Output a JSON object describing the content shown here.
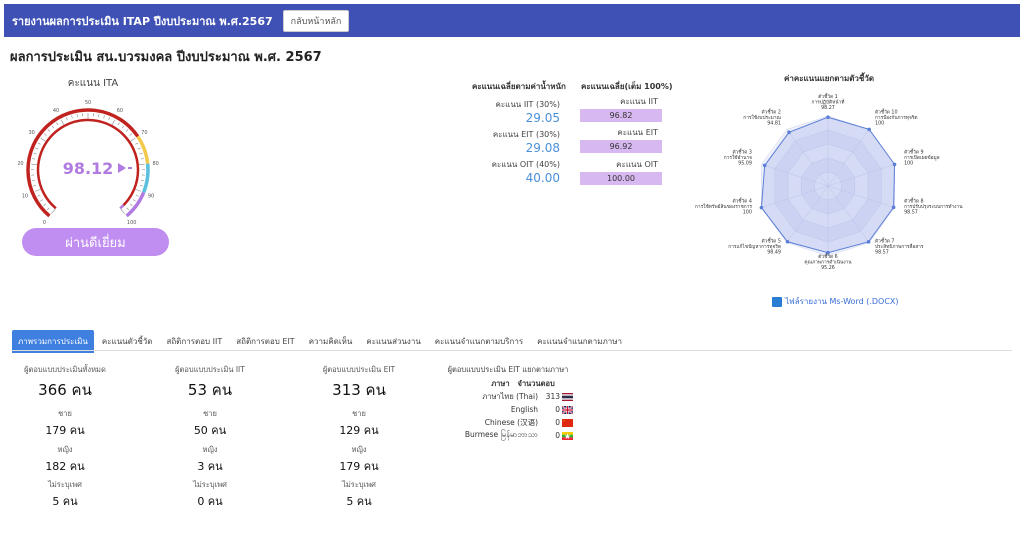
{
  "header": {
    "title": "รายงานผลการประเมิน ITAP ปีงบประมาณ พ.ศ.2567",
    "home_button": "กลับหน้าหลัก"
  },
  "page_title": "ผลการประเมิน สน.บวรมงคล ปีงบประมาณ พ.ศ. 2567",
  "gauge": {
    "label": "คะแนน ITA",
    "value": "98.12",
    "ticks": [
      "0",
      "10",
      "20",
      "30",
      "40",
      "50",
      "60",
      "70",
      "80",
      "90",
      "100"
    ],
    "result_button": "ผ่านดีเยี่ยม"
  },
  "weighted": {
    "header": "คะแนนเฉลี่ยตามค่าน้ำหนัก",
    "rows": [
      {
        "label": "คะแนน IIT (30%)",
        "value": "29.05"
      },
      {
        "label": "คะแนน EIT (30%)",
        "value": "29.08"
      },
      {
        "label": "คะแนน OIT (40%)",
        "value": "40.00"
      }
    ]
  },
  "full_score": {
    "header": "คะแนนเฉลี่ย(เต็ม 100%)",
    "rows": [
      {
        "label": "คะแนน IIT",
        "value": "96.82"
      },
      {
        "label": "คะแนน EIT",
        "value": "96.92"
      },
      {
        "label": "คะแนน OIT",
        "value": "100.00"
      }
    ]
  },
  "radar": {
    "title": "ค่าคะแนนแยกตามตัวชี้วัด",
    "indicators": [
      {
        "num": "ตัวชี้วัด 1",
        "name": "การปฏิบัติหน้าที่",
        "value": "98.27",
        "score": 98.27
      },
      {
        "num": "ตัวชี้วัด 10",
        "name": "การป้องกันการทุจริต",
        "value": "100",
        "score": 100
      },
      {
        "num": "ตัวชี้วัด 9",
        "name": "การเปิดเผยข้อมูล",
        "value": "100",
        "score": 100
      },
      {
        "num": "ตัวชี้วัด 8",
        "name": "การปรับปรุงระบบการทำงาน",
        "value": "98.57",
        "score": 98.57
      },
      {
        "num": "ตัวชี้วัด 7",
        "name": "ประสิทธิภาพการสื่อสาร",
        "value": "98.57",
        "score": 98.57
      },
      {
        "num": "ตัวชี้วัด 6",
        "name": "คุณภาพการดำเนินงาน",
        "value": "95.26",
        "score": 95.26
      },
      {
        "num": "ตัวชี้วัด 5",
        "name": "การแก้ไขปัญหาการทุจริต",
        "value": "98.49",
        "score": 98.49
      },
      {
        "num": "ตัวชี้วัด 4",
        "name": "การใช้ทรัพย์สินของราชการ",
        "value": "100",
        "score": 100
      },
      {
        "num": "ตัวชี้วัด 3",
        "name": "การใช้อำนาจ",
        "value": "95.09",
        "score": 95.09
      },
      {
        "num": "ตัวชี้วัด 2",
        "name": "การใช้งบประมาณ",
        "value": "94.81",
        "score": 94.81
      }
    ],
    "download_link": "ไฟล์รายงาน Ms-Word (.DOCX)"
  },
  "tabs": [
    "ภาพรวมการประเมิน",
    "คะแนนตัวชี้วัด",
    "สถิติการตอบ IIT",
    "สถิติการตอบ EIT",
    "ความคิดเห็น",
    "คะแนนส่วนงาน",
    "คะแนนจำแนกตามบริการ",
    "คะแนนจำแนกตามภาษา"
  ],
  "respondents": [
    {
      "title": "ผู้ตอบแบบประเมินทั้งหมด",
      "total": "366 คน",
      "male_label": "ชาย",
      "male": "179 คน",
      "female_label": "หญิง",
      "female": "182 คน",
      "unspecified_label": "ไม่ระบุเพศ",
      "unspecified": "5 คน"
    },
    {
      "title": "ผู้ตอบแบบประเมิน IIT",
      "total": "53 คน",
      "male_label": "ชาย",
      "male": "50 คน",
      "female_label": "หญิง",
      "female": "3 คน",
      "unspecified_label": "ไม่ระบุเพศ",
      "unspecified": "0 คน"
    },
    {
      "title": "ผู้ตอบแบบประเมิน EIT",
      "total": "313 คน",
      "male_label": "ชาย",
      "male": "129 คน",
      "female_label": "หญิง",
      "female": "179 คน",
      "unspecified_label": "ไม่ระบุเพศ",
      "unspecified": "5 คน"
    }
  ],
  "languages": {
    "header": "ผู้ตอบแบบประเมิน EIT แยกตามภาษา",
    "col_lang": "ภาษา",
    "col_count": "จำนวนตอบ",
    "rows": [
      {
        "name": "ภาษาไทย (Thai)",
        "count": "313"
      },
      {
        "name": "English",
        "count": "0"
      },
      {
        "name": "Chinese (汉语)",
        "count": "0"
      },
      {
        "name": "Burmese မြန်မာဘာသာ",
        "count": "0"
      }
    ]
  }
}
